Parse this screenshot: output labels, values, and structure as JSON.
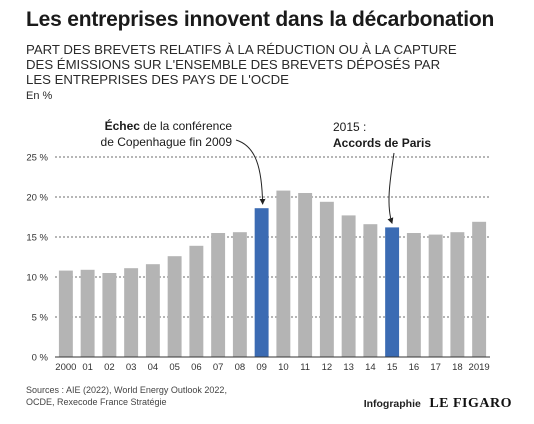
{
  "header": {
    "title": "Les entreprises innovent dans la décarbonation",
    "subtitle_lines": [
      "PART DES BREVETS RELATIFS À LA RÉDUCTION OU À LA CAPTURE",
      "DES ÉMISSIONS SUR L'ENSEMBLE DES BREVETS DÉPOSÉS PAR",
      "LES ENTREPRISES DES PAYS DE L'OCDE"
    ],
    "unit": "En %"
  },
  "chart_data": {
    "type": "bar",
    "categories": [
      "2000",
      "01",
      "02",
      "03",
      "04",
      "05",
      "06",
      "07",
      "08",
      "09",
      "10",
      "11",
      "12",
      "13",
      "14",
      "15",
      "16",
      "17",
      "18",
      "2019"
    ],
    "values": [
      10.8,
      10.9,
      10.5,
      11.1,
      11.6,
      12.6,
      13.9,
      15.5,
      15.6,
      18.6,
      20.8,
      20.5,
      19.4,
      17.7,
      16.6,
      16.2,
      15.5,
      15.3,
      15.6,
      16.9
    ],
    "highlighted": [
      "09",
      "15"
    ],
    "ylim": [
      0,
      25
    ],
    "yticks": [
      0,
      5,
      10,
      15,
      20,
      25
    ],
    "ytick_labels": [
      "0 %",
      "5 %",
      "10 %",
      "15 %",
      "20 %",
      "25 %"
    ],
    "grid": true,
    "colors": {
      "bar": "#b4b4b4",
      "highlight": "#3b6bb3",
      "grid": "#6e6e6e"
    },
    "annotations": [
      {
        "target": "09",
        "lines": [
          [
            {
              "text": "Échec",
              "bold": true
            },
            {
              "text": " de la conférence",
              "bold": false
            }
          ],
          [
            {
              "text": "de Copenhague fin 2009",
              "bold": false
            }
          ]
        ]
      },
      {
        "target": "15",
        "lines": [
          [
            {
              "text": "2015 :",
              "bold": false
            }
          ],
          [
            {
              "text": "Accords de Paris",
              "bold": true
            }
          ]
        ]
      }
    ]
  },
  "footer": {
    "source_lines": [
      "Sources : AIE (2022), World Energy Outlook 2022,",
      "OCDE, Rexecode France Stratégie"
    ],
    "credit_label": "Infographie",
    "credit_logo": "LE FIGARO"
  }
}
